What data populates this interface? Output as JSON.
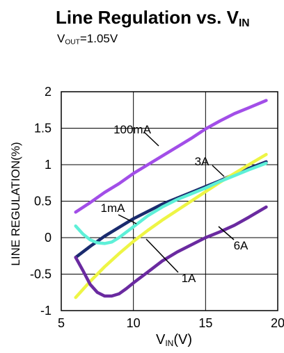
{
  "title": {
    "main": "Line Regulation vs. V",
    "sub": "IN"
  },
  "subtitle": {
    "main": "V",
    "sub": "OUT",
    "rest": "=1.05V"
  },
  "xlabel": {
    "main": "V",
    "sub": "IN",
    "rest": "(V)"
  },
  "ylabel": "LINE REGULATION(%)",
  "colors": {
    "100mA": "#a24ee8",
    "1mA": "#5ef0d8",
    "3A": "#1a2b6e",
    "1A": "#eef545",
    "6A": "#6a2aa0"
  },
  "chart_data": {
    "type": "line",
    "title": "Line Regulation vs. VIN",
    "subtitle": "VOUT=1.05V",
    "xlabel": "VIN(V)",
    "ylabel": "LINE REGULATION(%)",
    "xlim": [
      5,
      20
    ],
    "ylim": [
      -1,
      2
    ],
    "xticks": [
      "5",
      "10",
      "15",
      "20"
    ],
    "yticks": [
      "2",
      "1.5",
      "1",
      "0.5",
      "0",
      "-0.5",
      "-1"
    ],
    "grid": true,
    "series": [
      {
        "name": "100mA",
        "x": [
          6,
          7,
          8,
          9,
          10,
          11,
          12,
          13,
          14,
          15,
          16,
          17,
          18,
          19.2
        ],
        "y": [
          0.35,
          0.48,
          0.62,
          0.74,
          0.88,
          1.0,
          1.12,
          1.24,
          1.36,
          1.49,
          1.6,
          1.7,
          1.78,
          1.88
        ]
      },
      {
        "name": "1mA",
        "x": [
          6,
          6.5,
          7,
          7.5,
          8,
          8.5,
          9,
          10,
          11,
          12,
          13,
          14,
          15,
          16,
          17,
          18,
          19.2
        ],
        "y": [
          0.16,
          0.05,
          -0.03,
          -0.07,
          -0.08,
          -0.06,
          0.0,
          0.15,
          0.3,
          0.42,
          0.52,
          0.6,
          0.68,
          0.77,
          0.85,
          0.93,
          1.02
        ]
      },
      {
        "name": "3A",
        "x": [
          6,
          7,
          8,
          9,
          10,
          11,
          12,
          13,
          14,
          15,
          16,
          17,
          18,
          19.2
        ],
        "y": [
          -0.27,
          -0.12,
          0.02,
          0.14,
          0.26,
          0.36,
          0.46,
          0.54,
          0.62,
          0.7,
          0.78,
          0.87,
          0.95,
          1.04
        ]
      },
      {
        "name": "1A",
        "x": [
          6,
          7,
          8,
          9,
          10,
          11,
          12,
          13,
          14,
          15,
          16,
          17,
          18,
          19.2
        ],
        "y": [
          -0.82,
          -0.6,
          -0.4,
          -0.22,
          -0.05,
          0.1,
          0.24,
          0.37,
          0.5,
          0.63,
          0.76,
          0.88,
          1.0,
          1.14
        ]
      },
      {
        "name": "6A",
        "x": [
          6,
          6.5,
          7,
          7.5,
          8,
          8.5,
          9,
          9.5,
          10,
          11,
          12,
          13,
          14,
          15,
          16,
          17,
          18,
          19.2
        ],
        "y": [
          -0.27,
          -0.45,
          -0.64,
          -0.75,
          -0.8,
          -0.8,
          -0.77,
          -0.7,
          -0.62,
          -0.47,
          -0.32,
          -0.2,
          -0.1,
          0.0,
          0.08,
          0.17,
          0.28,
          0.42
        ]
      }
    ],
    "annotations": [
      {
        "text": "100mA",
        "series": "100mA"
      },
      {
        "text": "3A",
        "series": "3A"
      },
      {
        "text": "1mA",
        "series": "1mA"
      },
      {
        "text": "6A",
        "series": "6A"
      },
      {
        "text": "1A",
        "series": "1A"
      }
    ]
  }
}
